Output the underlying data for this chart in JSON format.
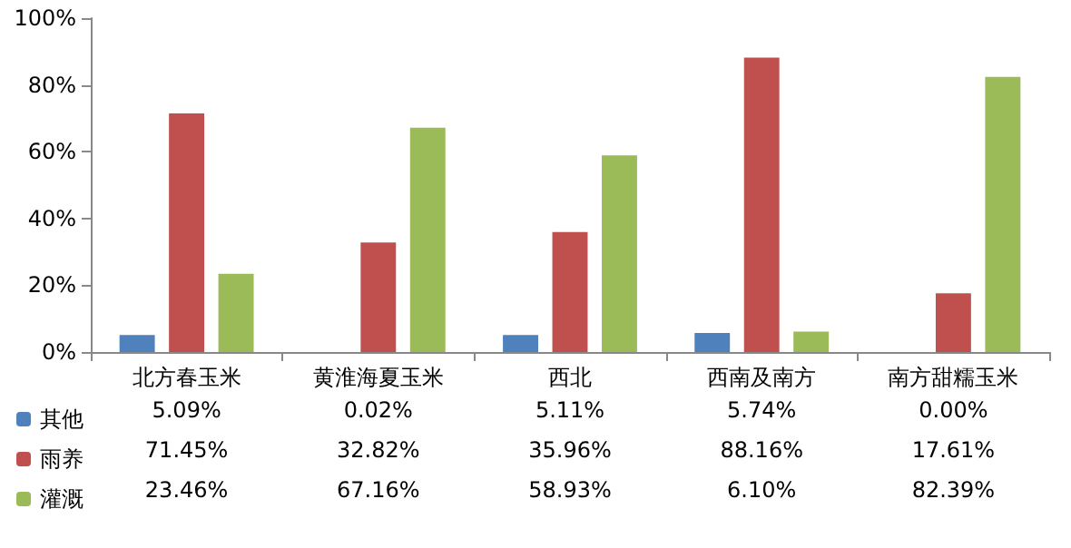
{
  "chart_data": {
    "type": "bar",
    "categories": [
      "北方春玉米",
      "黄淮海夏玉米",
      "西北",
      "西南及南方",
      "南方甜糯玉米"
    ],
    "series": [
      {
        "name": "其他",
        "color": "#4f81bd",
        "values": [
          5.09,
          0.02,
          5.11,
          5.74,
          0.0
        ],
        "value_labels": [
          "5.09%",
          "0.02%",
          "5.11%",
          "5.74%",
          "0.00%"
        ]
      },
      {
        "name": "雨养",
        "color": "#c0504d",
        "values": [
          71.45,
          32.82,
          35.96,
          88.16,
          17.61
        ],
        "value_labels": [
          "71.45%",
          "32.82%",
          "35.96%",
          "88.16%",
          "17.61%"
        ]
      },
      {
        "name": "灌溉",
        "color": "#9bbb59",
        "values": [
          23.46,
          67.16,
          58.93,
          6.1,
          82.39
        ],
        "value_labels": [
          "23.46%",
          "67.16%",
          "58.93%",
          "6.10%",
          "82.39%"
        ]
      }
    ],
    "ylim": [
      0,
      100
    ],
    "yticks": [
      {
        "value": 0,
        "label": "0%"
      },
      {
        "value": 20,
        "label": "20%"
      },
      {
        "value": 40,
        "label": "40%"
      },
      {
        "value": 60,
        "label": "60%"
      },
      {
        "value": 80,
        "label": "80%"
      },
      {
        "value": 100,
        "label": "100%"
      }
    ],
    "grid": false,
    "legend": "bottom left"
  }
}
